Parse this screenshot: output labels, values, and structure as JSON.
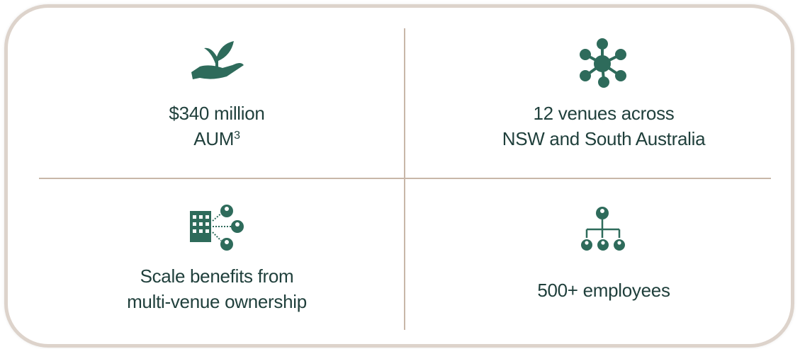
{
  "cells": [
    {
      "lines": [
        "$340 million",
        "AUM"
      ],
      "superscript": "3"
    },
    {
      "lines": [
        "12 venues across",
        "NSW and South Australia"
      ]
    },
    {
      "lines": [
        "Scale benefits from",
        "multi-venue ownership"
      ]
    },
    {
      "lines": [
        "500+ employees"
      ]
    }
  ]
}
